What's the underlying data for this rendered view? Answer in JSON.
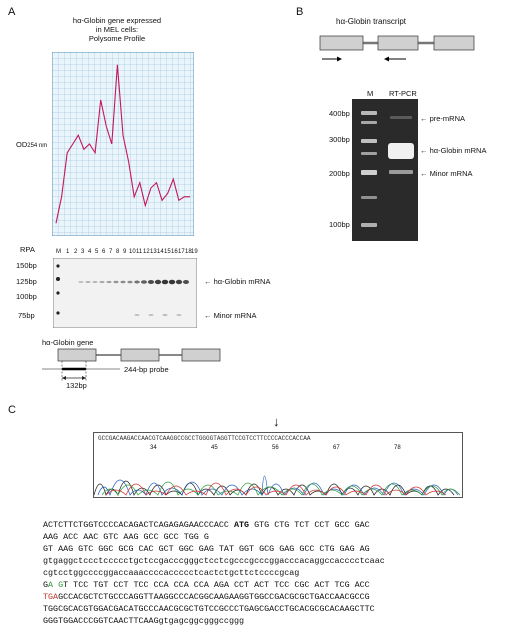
{
  "panels": {
    "a": "A",
    "b": "B",
    "c": "C"
  },
  "panel_a": {
    "title_lines": [
      "hα-Globin  gene expressed",
      "in MEL cells:",
      "Polysome Profile"
    ],
    "od_label": "OD",
    "od_sub": "254 nm",
    "rpa_label": "RPA",
    "lane_labels": [
      "M",
      "1",
      "2",
      "3",
      "4",
      "5",
      "6",
      "7",
      "8",
      "9",
      "10",
      "11",
      "12",
      "13",
      "14",
      "15",
      "16",
      "17",
      "18",
      "19"
    ],
    "size_markers": [
      "150bp",
      "125bp",
      "100bp",
      "75bp"
    ],
    "band_labels": [
      "hα-Globin mRNA",
      "Minor mRNA"
    ],
    "gene_label": "hα-Globin gene",
    "probe_label": "244-bp probe",
    "probe_len": "132bp",
    "chart_data": {
      "type": "line",
      "title": "Polysome Profile",
      "ylabel": "OD254 nm",
      "xlabel": "",
      "series": [
        {
          "values": [
            0.05,
            0.2,
            0.45,
            0.5,
            0.55,
            0.47,
            0.5,
            0.45,
            0.75,
            0.6,
            0.5,
            0.95,
            0.55,
            0.4,
            0.2,
            0.28,
            0.15,
            0.25,
            0.28,
            0.18,
            0.22,
            0.3,
            0.18,
            0.2,
            0.2
          ]
        }
      ]
    }
  },
  "panel_b": {
    "transcript_label": "hα-Globin transcript",
    "lane_m": "M",
    "lane_rt": "RT-PCR",
    "size_markers": [
      "400bp",
      "300bp",
      "200bp",
      "100bp"
    ],
    "band_labels": [
      "pre-mRNA",
      "hα-Globin mRNA",
      "Minor mRNA"
    ]
  },
  "panel_c": {
    "chrom_seq": "GCCGACAAGACCAACGTCAAGGCCGCCTGGGGTAGGTTCCGTCCTTCCCCACCCACCAA",
    "positions": [
      "34",
      "45",
      "56",
      "67",
      "78"
    ],
    "seq_lines": [
      {
        "pre": "ACTCTTCTGGTCCCCACAGACTCAGAGAGAACCCACC ",
        "bold": "ATG",
        "post": " GTG CTG TCT CCT GCC GAC"
      },
      {
        "text": "AAG ACC AAC GTC AAG GCC GCC TGG G"
      },
      {
        "text": "GT AAG GTC GGC GCG CAC GCT GGC GAG TAT GGT GCG GAG GCC CTG GAG AG"
      },
      {
        "text": "gtgaggctccctccccctgctccgacccgggctcctcgcccgcccggacccacaggccacccctcaac"
      },
      {
        "text": "cgtcctggccccggaccaaaccccaccccctcactctgcttctccccgcag"
      },
      {
        "a": "G",
        "b": "A ",
        "c": "G",
        "d": "T",
        "e": " TCC TGT CCT TCC CCA CCA CCA AGA CCT ACT TCC CGC ACT TCG ACC"
      },
      {
        "red": "TGA",
        "rest": "GCCACGCTCTGCCCAGGTTAAGGCCCACGGCAAGAAGGTGGCCGACGCGCTGACCAACGCCG"
      },
      {
        "text": "TGGCGCACGTGGACGACATGCCCAACGCGCTGTCCGCCCTGAGCGACCTGCACGCGCACAAGCTTC"
      },
      {
        "text": "GGGTGGACCCGGTCAACTTCAAGgtgagcggcgggccggg"
      }
    ]
  }
}
